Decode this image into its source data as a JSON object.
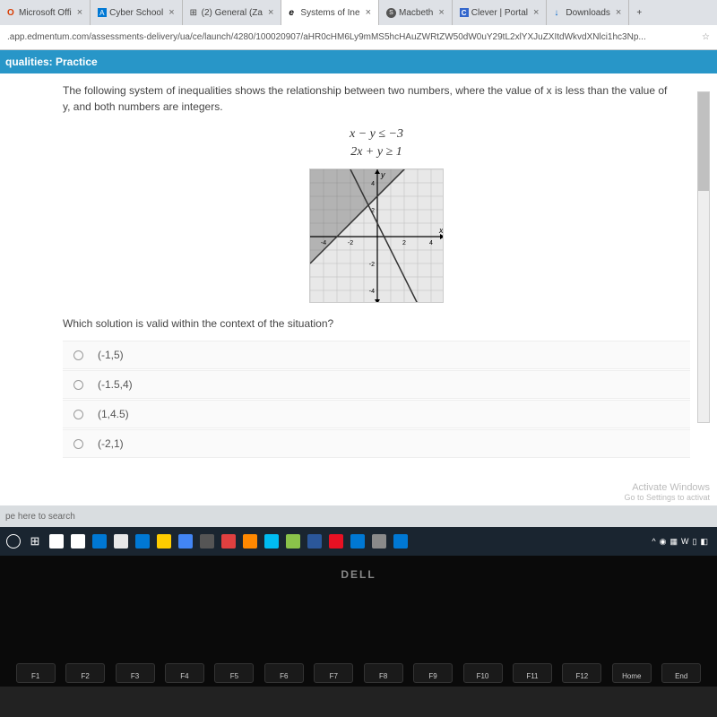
{
  "tabs": [
    {
      "label": "Microsoft Offi",
      "icon_class": "ico-o",
      "icon_char": "O"
    },
    {
      "label": "Cyber School",
      "icon_class": "ico-b",
      "icon_char": "A"
    },
    {
      "label": "(2) General (Za",
      "icon_class": "",
      "icon_char": "⊞"
    },
    {
      "label": "Systems of Ine",
      "icon_class": "ico-e",
      "icon_char": "e",
      "active": true
    },
    {
      "label": "Macbeth",
      "icon_class": "ico-s",
      "icon_char": "S"
    },
    {
      "label": "Clever | Portal",
      "icon_class": "ico-c",
      "icon_char": "C"
    },
    {
      "label": "Downloads",
      "icon_class": "ico-d",
      "icon_char": "↓"
    }
  ],
  "new_tab": "+",
  "url": ".app.edmentum.com/assessments-delivery/ua/ce/launch/4280/100020907/aHR0cHM6Ly9mMS5hcHAuZWRtZW50dW0uY29tL2xlYXJuZXItdWkvdXNlci1hc3Np...",
  "banner": "qualities: Practice",
  "prompt": "The following system of inequalities shows the relationship between two numbers, where the value of x is less than the value of y, and both numbers are integers.",
  "ineq1": "x − y ≤ −3",
  "ineq2": "2x + y ≥ 1",
  "question": "Which solution is valid within the context of the situation?",
  "options": [
    "(-1,5)",
    "(-1.5,4)",
    "(1,4.5)",
    "(-2,1)"
  ],
  "watermark_title": "Activate Windows",
  "watermark_sub": "Go to Settings to activat",
  "search_placeholder": "pe here to search",
  "dell": "DELL",
  "fn_keys": [
    "F1",
    "F2",
    "F3",
    "F4",
    "F5",
    "F6",
    "F7",
    "F8",
    "F9",
    "F10",
    "F11",
    "F12",
    "Home",
    "End"
  ],
  "graph": {
    "size": 150,
    "range": [
      -5,
      5
    ],
    "ticks": [
      -4,
      -2,
      2,
      4
    ],
    "line1": {
      "slope": 1,
      "intercept": 3,
      "color": "#333"
    },
    "line2": {
      "slope": -2,
      "intercept": 1,
      "color": "#333"
    },
    "fill": "rgba(80,80,80,0.35)",
    "grid_color": "#bbb",
    "axis_color": "#000"
  },
  "tb_colors": [
    "#fff",
    "#fff",
    "#0078d4",
    "#e8e8e8",
    "#0078d4",
    "#ffcc00",
    "#4285f4",
    "#555",
    "#e04040",
    "#ff8800",
    "#00bcf2",
    "#8bc34a",
    "#2b579a",
    "#e81123",
    "#0078d4",
    "#8a8a8a",
    "#0078d4"
  ]
}
